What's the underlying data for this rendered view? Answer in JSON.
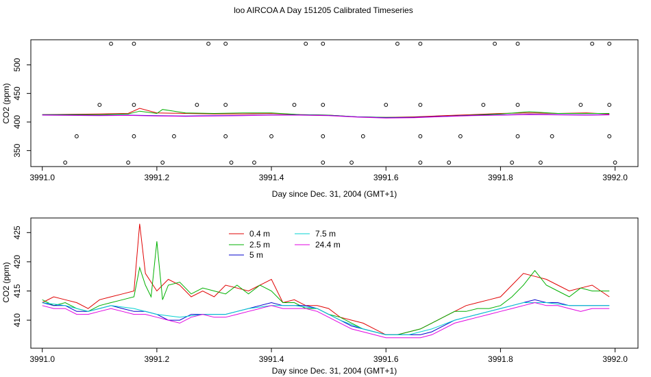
{
  "title": "loo AIRCOA A  Day 151205  Calibrated Timeseries",
  "colors": {
    "0.4 m": "#e00000",
    "2.5 m": "#00b000",
    "5 m": "#0000cc",
    "7.5 m": "#00d0d0",
    "24.4 m": "#e000e0"
  },
  "chart_data": [
    {
      "type": "line",
      "panel": "top",
      "xlabel": "Day since Dec. 31, 2004 (GMT+1)",
      "ylabel": "CO2 (ppm)",
      "xlim": [
        3990.98,
        3992.04
      ],
      "ylim": [
        322,
        544
      ],
      "xticks": [
        "3991.0",
        "3991.2",
        "3991.4",
        "3991.6",
        "3991.8",
        "3992.0"
      ],
      "yticks": [
        "350",
        "400",
        "450",
        "500"
      ],
      "series": [
        {
          "key": "0.4 m",
          "x": [
            3991.0,
            3991.05,
            3991.1,
            3991.15,
            3991.17,
            3991.2,
            3991.25,
            3991.3,
            3991.35,
            3991.4,
            3991.45,
            3991.5,
            3991.55,
            3991.6,
            3991.65,
            3991.7,
            3991.75,
            3991.8,
            3991.85,
            3991.9,
            3991.95,
            3991.99
          ],
          "y": [
            413,
            413.5,
            414,
            415,
            424,
            416,
            415,
            414,
            414,
            415,
            413,
            412,
            409,
            408,
            409,
            411,
            413,
            415,
            416,
            415,
            416,
            414
          ]
        },
        {
          "key": "2.5 m",
          "x": [
            3991.0,
            3991.05,
            3991.1,
            3991.15,
            3991.17,
            3991.2,
            3991.21,
            3991.25,
            3991.3,
            3991.35,
            3991.4,
            3991.45,
            3991.5,
            3991.55,
            3991.6,
            3991.65,
            3991.7,
            3991.75,
            3991.8,
            3991.85,
            3991.9,
            3991.95,
            3991.99
          ],
          "y": [
            413,
            413,
            413,
            414,
            419,
            415,
            422,
            416,
            415,
            416,
            416,
            413,
            412,
            409,
            408,
            408,
            410,
            412,
            414,
            418,
            415,
            415,
            415
          ]
        },
        {
          "key": "5 m",
          "x": [
            3991.0,
            3991.05,
            3991.1,
            3991.15,
            3991.2,
            3991.25,
            3991.3,
            3991.35,
            3991.4,
            3991.45,
            3991.5,
            3991.55,
            3991.6,
            3991.65,
            3991.7,
            3991.75,
            3991.8,
            3991.85,
            3991.9,
            3991.95,
            3991.99
          ],
          "y": [
            412.5,
            412,
            411.5,
            412,
            411,
            410.5,
            411,
            411.5,
            412.5,
            412.5,
            411.5,
            409,
            407.5,
            408,
            410,
            411.5,
            412.5,
            413.5,
            413,
            412.5,
            413
          ]
        },
        {
          "key": "24.4 m",
          "x": [
            3991.0,
            3991.05,
            3991.1,
            3991.15,
            3991.2,
            3991.25,
            3991.3,
            3991.35,
            3991.4,
            3991.45,
            3991.5,
            3991.55,
            3991.6,
            3991.65,
            3991.7,
            3991.75,
            3991.8,
            3991.85,
            3991.9,
            3991.95,
            3991.99
          ],
          "y": [
            412,
            411.5,
            411,
            411.5,
            410.5,
            410,
            410.5,
            411,
            412,
            412,
            411,
            408.5,
            407,
            407.5,
            409.5,
            411,
            412,
            413,
            412.5,
            412,
            412.5
          ]
        }
      ],
      "markers": {
        "x": [
          3991.12,
          3991.16,
          3991.29,
          3991.32,
          3991.46,
          3991.49,
          3991.62,
          3991.66,
          3991.79,
          3991.83,
          3991.96,
          3991.99,
          3991.1,
          3991.16,
          3991.27,
          3991.32,
          3991.44,
          3991.49,
          3991.6,
          3991.66,
          3991.77,
          3991.83,
          3991.94,
          3991.99,
          3991.06,
          3991.16,
          3991.23,
          3991.32,
          3991.4,
          3991.49,
          3991.56,
          3991.66,
          3991.73,
          3991.83,
          3991.89,
          3991.99,
          3991.04,
          3991.15,
          3991.21,
          3991.33,
          3991.37,
          3991.49,
          3991.54,
          3991.66,
          3991.71,
          3991.82,
          3991.87,
          3992.0
        ],
        "y": [
          537,
          537,
          537,
          537,
          537,
          537,
          537,
          537,
          537,
          537,
          537,
          537,
          430,
          430,
          430,
          430,
          430,
          430,
          430,
          430,
          430,
          430,
          430,
          430,
          375,
          375,
          375,
          375,
          375,
          375,
          375,
          375,
          375,
          375,
          375,
          375,
          329,
          329,
          329,
          329,
          329,
          329,
          329,
          329,
          329,
          329,
          329,
          329
        ]
      }
    },
    {
      "type": "line",
      "panel": "bottom",
      "xlabel": "Day since Dec. 31, 2004 (GMT+1)",
      "ylabel": "CO2 (ppm)",
      "xlim": [
        3990.98,
        3992.04
      ],
      "ylim": [
        405.2,
        427.5
      ],
      "xticks": [
        "3991.0",
        "3991.2",
        "3991.4",
        "3991.6",
        "3991.8",
        "3992.0"
      ],
      "yticks": [
        "410",
        "415",
        "420",
        "425"
      ],
      "legend": {
        "position": "top-left",
        "entries": [
          "0.4 m",
          "2.5 m",
          "5 m",
          "7.5 m",
          "24.4 m"
        ]
      },
      "series": [
        {
          "key": "0.4 m",
          "x": [
            3991.0,
            3991.02,
            3991.04,
            3991.06,
            3991.08,
            3991.1,
            3991.12,
            3991.14,
            3991.16,
            3991.17,
            3991.18,
            3991.2,
            3991.22,
            3991.24,
            3991.26,
            3991.28,
            3991.3,
            3991.32,
            3991.34,
            3991.36,
            3991.38,
            3991.4,
            3991.42,
            3991.44,
            3991.46,
            3991.48,
            3991.5,
            3991.52,
            3991.54,
            3991.56,
            3991.58,
            3991.6,
            3991.62,
            3991.64,
            3991.66,
            3991.68,
            3991.7,
            3991.72,
            3991.74,
            3991.76,
            3991.78,
            3991.8,
            3991.82,
            3991.84,
            3991.86,
            3991.88,
            3991.9,
            3991.92,
            3991.94,
            3991.96,
            3991.99
          ],
          "y": [
            413,
            414,
            413.5,
            413,
            412,
            413.5,
            414,
            414.5,
            415,
            426.5,
            418,
            415,
            417,
            416,
            414,
            415,
            414,
            416,
            415.5,
            415,
            416,
            417,
            413,
            413.5,
            412.5,
            412.5,
            412,
            410.5,
            410,
            409.5,
            408.5,
            407.5,
            407.5,
            408,
            408.5,
            409.5,
            410.5,
            411.5,
            412.5,
            413,
            413.5,
            414,
            416,
            418,
            417.5,
            417,
            416,
            415,
            415.5,
            416,
            414
          ]
        },
        {
          "key": "2.5 m",
          "x": [
            3991.0,
            3991.02,
            3991.04,
            3991.06,
            3991.08,
            3991.1,
            3991.12,
            3991.14,
            3991.16,
            3991.17,
            3991.18,
            3991.19,
            3991.2,
            3991.21,
            3991.22,
            3991.24,
            3991.26,
            3991.28,
            3991.3,
            3991.32,
            3991.34,
            3991.36,
            3991.38,
            3991.4,
            3991.42,
            3991.44,
            3991.46,
            3991.48,
            3991.5,
            3991.52,
            3991.54,
            3991.56,
            3991.58,
            3991.6,
            3991.62,
            3991.64,
            3991.66,
            3991.68,
            3991.7,
            3991.72,
            3991.74,
            3991.76,
            3991.78,
            3991.8,
            3991.82,
            3991.84,
            3991.86,
            3991.88,
            3991.9,
            3991.92,
            3991.94,
            3991.96,
            3991.99
          ],
          "y": [
            413.5,
            412.5,
            413,
            412,
            411.5,
            412.5,
            413,
            413.5,
            414,
            419,
            416,
            414,
            423.5,
            413.5,
            416,
            416.5,
            414.5,
            415.5,
            415,
            414.5,
            416,
            414.5,
            416,
            415,
            413,
            413,
            412,
            412,
            411,
            410.5,
            409.5,
            408.5,
            408,
            407.5,
            407.5,
            408,
            408.5,
            409.5,
            410.5,
            411.5,
            411.5,
            412,
            412,
            412.5,
            414,
            416,
            418.5,
            416,
            415,
            414,
            415.5,
            415,
            415
          ]
        },
        {
          "key": "5 m",
          "x": [
            3991.0,
            3991.02,
            3991.04,
            3991.06,
            3991.08,
            3991.1,
            3991.12,
            3991.14,
            3991.16,
            3991.18,
            3991.2,
            3991.22,
            3991.24,
            3991.26,
            3991.28,
            3991.3,
            3991.32,
            3991.34,
            3991.36,
            3991.38,
            3991.4,
            3991.42,
            3991.44,
            3991.46,
            3991.48,
            3991.5,
            3991.52,
            3991.54,
            3991.56,
            3991.58,
            3991.6,
            3991.62,
            3991.64,
            3991.66,
            3991.68,
            3991.7,
            3991.72,
            3991.74,
            3991.76,
            3991.78,
            3991.8,
            3991.82,
            3991.84,
            3991.86,
            3991.88,
            3991.9,
            3991.92,
            3991.94,
            3991.96,
            3991.99
          ],
          "y": [
            413,
            412.5,
            412.5,
            411.5,
            411.5,
            412,
            412.5,
            412,
            411.5,
            411.5,
            411,
            410,
            410,
            411,
            411,
            411,
            411,
            411.5,
            412,
            412.5,
            413,
            412.5,
            412.5,
            412.5,
            412,
            411,
            410,
            409,
            408.5,
            408,
            407.5,
            407.5,
            407.5,
            407.5,
            408,
            409,
            410,
            410.5,
            411,
            411.5,
            412,
            412.5,
            413,
            413.5,
            413,
            413,
            412.5,
            412.5,
            412.5,
            412.5
          ]
        },
        {
          "key": "7.5 m",
          "x": [
            3991.0,
            3991.04,
            3991.08,
            3991.12,
            3991.16,
            3991.2,
            3991.24,
            3991.28,
            3991.32,
            3991.36,
            3991.4,
            3991.44,
            3991.48,
            3991.52,
            3991.56,
            3991.6,
            3991.64,
            3991.68,
            3991.72,
            3991.76,
            3991.8,
            3991.84,
            3991.88,
            3991.92,
            3991.96,
            3991.99
          ],
          "y": [
            413,
            412.5,
            411.5,
            412.5,
            412,
            411,
            410.5,
            411,
            411,
            412,
            412.5,
            412.5,
            412,
            410,
            408.5,
            407.5,
            407.5,
            408.5,
            410,
            411,
            412,
            413,
            413,
            412.5,
            412.5,
            412.5
          ]
        },
        {
          "key": "24.4 m",
          "x": [
            3991.0,
            3991.02,
            3991.04,
            3991.06,
            3991.08,
            3991.1,
            3991.12,
            3991.14,
            3991.16,
            3991.18,
            3991.2,
            3991.22,
            3991.24,
            3991.26,
            3991.28,
            3991.3,
            3991.32,
            3991.34,
            3991.36,
            3991.38,
            3991.4,
            3991.42,
            3991.44,
            3991.46,
            3991.48,
            3991.5,
            3991.52,
            3991.54,
            3991.56,
            3991.58,
            3991.6,
            3991.62,
            3991.64,
            3991.66,
            3991.68,
            3991.7,
            3991.72,
            3991.74,
            3991.76,
            3991.78,
            3991.8,
            3991.82,
            3991.84,
            3991.86,
            3991.88,
            3991.9,
            3991.92,
            3991.94,
            3991.96,
            3991.99
          ],
          "y": [
            412.5,
            412,
            412,
            411,
            411,
            411.5,
            412,
            411.5,
            411,
            411,
            410.5,
            410,
            409.5,
            410.5,
            411,
            410.5,
            410.5,
            411,
            411.5,
            412,
            412.5,
            412,
            412,
            412,
            411.5,
            410.5,
            409.5,
            408.5,
            408,
            407.5,
            407,
            407,
            407,
            407,
            407.5,
            408.5,
            409.5,
            410,
            410.5,
            411,
            411.5,
            412,
            412.5,
            413,
            412.5,
            412.5,
            412,
            411.5,
            412,
            412
          ]
        }
      ]
    }
  ]
}
